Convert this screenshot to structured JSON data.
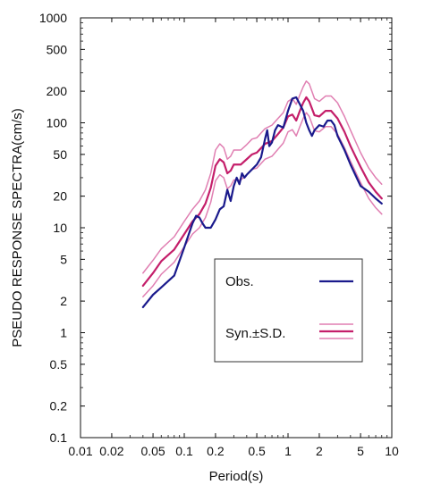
{
  "chart_data": {
    "type": "line",
    "xlabel": "Period(s)",
    "ylabel": "PSEUDO RESPONSE SPECTRA(cm/s)",
    "x_scale": "log",
    "y_scale": "log",
    "xlim": [
      0.01,
      10
    ],
    "ylim": [
      0.1,
      1000
    ],
    "x_ticks": [
      {
        "value": 0.01,
        "label": "0.01"
      },
      {
        "value": 0.02,
        "label": "0.02"
      },
      {
        "value": 0.05,
        "label": "0.05"
      },
      {
        "value": 0.1,
        "label": "0.1"
      },
      {
        "value": 0.2,
        "label": "0.2"
      },
      {
        "value": 0.5,
        "label": "0.5"
      },
      {
        "value": 1,
        "label": "1"
      },
      {
        "value": 2,
        "label": "2"
      },
      {
        "value": 5,
        "label": "5"
      },
      {
        "value": 10,
        "label": "10"
      }
    ],
    "y_ticks": [
      {
        "value": 0.1,
        "label": "0.1"
      },
      {
        "value": 0.2,
        "label": "0.2"
      },
      {
        "value": 0.5,
        "label": "0.5"
      },
      {
        "value": 1,
        "label": "1"
      },
      {
        "value": 2,
        "label": "2"
      },
      {
        "value": 5,
        "label": "5"
      },
      {
        "value": 10,
        "label": "10"
      },
      {
        "value": 20,
        "label": "20"
      },
      {
        "value": 50,
        "label": "50"
      },
      {
        "value": 100,
        "label": "100"
      },
      {
        "value": 200,
        "label": "200"
      },
      {
        "value": 500,
        "label": "500"
      },
      {
        "value": 1000,
        "label": "1000"
      }
    ],
    "grid": false,
    "legend": {
      "position": "lower-right",
      "entries": [
        {
          "label": "Obs.",
          "style": "single"
        },
        {
          "label": "Syn.±S.D.",
          "style": "band"
        }
      ]
    },
    "colors": {
      "obs": "#1a1a8c",
      "syn": "#c41e6a",
      "sd": "#e07fb2"
    },
    "series": [
      {
        "key": "obs",
        "x": [
          0.04,
          0.05,
          0.06,
          0.08,
          0.1,
          0.12,
          0.13,
          0.14,
          0.15,
          0.16,
          0.18,
          0.2,
          0.22,
          0.24,
          0.26,
          0.28,
          0.3,
          0.32,
          0.34,
          0.36,
          0.38,
          0.4,
          0.45,
          0.5,
          0.55,
          0.6,
          0.63,
          0.66,
          0.7,
          0.75,
          0.8,
          0.9,
          1.0,
          1.1,
          1.2,
          1.3,
          1.4,
          1.5,
          1.6,
          1.7,
          1.8,
          1.9,
          2.0,
          2.2,
          2.4,
          2.6,
          2.8,
          3.0,
          3.5,
          4.0,
          5.0,
          6.0,
          7.0,
          8.0
        ],
        "values": [
          1.75,
          2.3,
          2.7,
          3.5,
          6.5,
          11,
          13,
          12.5,
          11,
          10,
          10,
          12,
          15,
          16,
          23,
          18,
          25,
          30,
          26,
          33,
          30,
          32,
          36,
          40,
          47,
          70,
          85,
          60,
          65,
          85,
          95,
          90,
          130,
          170,
          175,
          150,
          130,
          100,
          85,
          75,
          85,
          90,
          95,
          92,
          105,
          105,
          95,
          75,
          55,
          40,
          25,
          22,
          19,
          17
        ]
      },
      {
        "key": "syn",
        "x": [
          0.04,
          0.05,
          0.06,
          0.08,
          0.1,
          0.12,
          0.14,
          0.16,
          0.18,
          0.2,
          0.22,
          0.24,
          0.26,
          0.28,
          0.3,
          0.35,
          0.4,
          0.45,
          0.5,
          0.6,
          0.7,
          0.8,
          0.9,
          1.0,
          1.1,
          1.2,
          1.3,
          1.4,
          1.5,
          1.6,
          1.8,
          2.0,
          2.3,
          2.6,
          3.0,
          3.5,
          4.0,
          5.0,
          6.0,
          7.0,
          8.0
        ],
        "values": [
          2.8,
          3.7,
          4.8,
          6.2,
          8.7,
          11.5,
          13.5,
          17,
          24,
          39,
          45,
          42,
          33,
          35,
          40,
          40,
          45,
          50,
          52,
          63,
          67,
          78,
          90,
          115,
          120,
          105,
          130,
          155,
          175,
          160,
          118,
          115,
          130,
          130,
          110,
          82,
          60,
          38,
          27,
          22,
          19
        ]
      },
      {
        "key": "sd_upper",
        "x": [
          0.04,
          0.05,
          0.06,
          0.08,
          0.1,
          0.12,
          0.14,
          0.16,
          0.18,
          0.2,
          0.22,
          0.24,
          0.26,
          0.28,
          0.3,
          0.35,
          0.4,
          0.45,
          0.5,
          0.6,
          0.7,
          0.8,
          0.9,
          1.0,
          1.1,
          1.2,
          1.3,
          1.4,
          1.5,
          1.6,
          1.8,
          2.0,
          2.3,
          2.6,
          3.0,
          3.5,
          4.0,
          5.0,
          6.0,
          7.0,
          8.0
        ],
        "values": [
          3.7,
          4.9,
          6.3,
          8.2,
          11.5,
          15,
          18,
          23,
          33,
          55,
          63,
          58,
          45,
          48,
          55,
          55,
          62,
          70,
          72,
          88,
          95,
          110,
          125,
          160,
          170,
          150,
          185,
          220,
          250,
          235,
          170,
          160,
          180,
          180,
          155,
          115,
          85,
          52,
          37,
          30,
          26
        ]
      },
      {
        "key": "sd_lower",
        "x": [
          0.04,
          0.05,
          0.06,
          0.08,
          0.1,
          0.12,
          0.14,
          0.16,
          0.18,
          0.2,
          0.22,
          0.24,
          0.26,
          0.28,
          0.3,
          0.35,
          0.4,
          0.45,
          0.5,
          0.6,
          0.7,
          0.8,
          0.9,
          1.0,
          1.1,
          1.2,
          1.3,
          1.4,
          1.5,
          1.6,
          1.8,
          2.0,
          2.3,
          2.6,
          3.0,
          3.5,
          4.0,
          5.0,
          6.0,
          7.0,
          8.0
        ],
        "values": [
          2.2,
          2.8,
          3.6,
          4.7,
          6.6,
          8.7,
          10,
          12.5,
          17.5,
          28,
          32,
          30,
          23.5,
          25,
          28.5,
          28.5,
          32,
          36,
          37,
          45,
          48,
          56,
          64,
          82,
          86,
          75,
          92,
          110,
          125,
          115,
          84,
          82,
          92,
          92,
          78,
          58,
          43,
          27,
          19,
          15.5,
          13.5
        ]
      }
    ]
  }
}
